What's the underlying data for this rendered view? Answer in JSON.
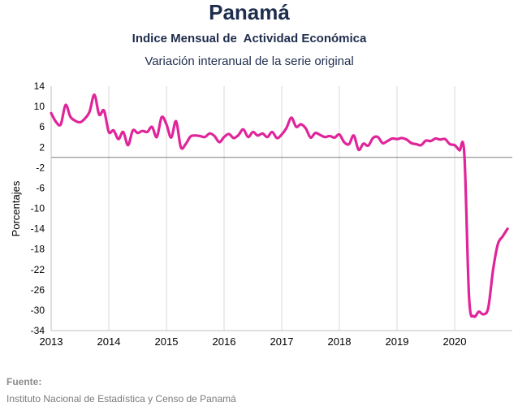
{
  "header": {
    "title": "Panamá",
    "subtitle": "Indice Mensual de  Actividad Económica",
    "subtitle2": "Variación interanual de la serie original"
  },
  "source": {
    "label": "Fuente:",
    "text": "Instituto Nacional de Estadística y Censo de Panamá"
  },
  "chart_data": {
    "type": "line",
    "title": "Panamá",
    "subtitle": "Indice Mensual de  Actividad Económica - Variación interanual de la serie original",
    "xlabel": "",
    "ylabel": "Porcentajes",
    "xlim": [
      2013,
      2021
    ],
    "ylim": [
      -34,
      14
    ],
    "yticks": [
      14,
      10,
      6,
      2,
      -2,
      -6,
      -10,
      -14,
      -18,
      -22,
      -26,
      -30,
      -34
    ],
    "xticks": [
      2013,
      2014,
      2015,
      2016,
      2017,
      2018,
      2019,
      2020
    ],
    "grid": "vertical",
    "zero_line": true,
    "line_color": "#e0249a",
    "series": [
      {
        "x": [
          2013.0,
          2013.083,
          2013.167,
          2013.25,
          2013.333,
          2013.417,
          2013.5,
          2013.583,
          2013.667,
          2013.75,
          2013.833,
          2013.917,
          2014.0,
          2014.083,
          2014.167,
          2014.25,
          2014.333,
          2014.417,
          2014.5,
          2014.583,
          2014.667,
          2014.75,
          2014.833,
          2014.917,
          2015.0,
          2015.083,
          2015.167,
          2015.25,
          2015.333,
          2015.417,
          2015.5,
          2015.583,
          2015.667,
          2015.75,
          2015.833,
          2015.917,
          2016.0,
          2016.083,
          2016.167,
          2016.25,
          2016.333,
          2016.417,
          2016.5,
          2016.583,
          2016.667,
          2016.75,
          2016.833,
          2016.917,
          2017.0,
          2017.083,
          2017.167,
          2017.25,
          2017.333,
          2017.417,
          2017.5,
          2017.583,
          2017.667,
          2017.75,
          2017.833,
          2017.917,
          2018.0,
          2018.083,
          2018.167,
          2018.25,
          2018.333,
          2018.417,
          2018.5,
          2018.583,
          2018.667,
          2018.75,
          2018.833,
          2018.917,
          2019.0,
          2019.083,
          2019.167,
          2019.25,
          2019.333,
          2019.417,
          2019.5,
          2019.583,
          2019.667,
          2019.75,
          2019.833,
          2019.917,
          2020.0,
          2020.083,
          2020.167,
          2020.25,
          2020.333,
          2020.417,
          2020.5,
          2020.583,
          2020.667,
          2020.75,
          2020.833,
          2020.917
        ],
        "values": [
          8.7,
          7.0,
          6.5,
          10.3,
          8.0,
          7.2,
          6.9,
          7.6,
          9.0,
          12.3,
          8.4,
          9.2,
          5.0,
          5.3,
          3.6,
          5.0,
          2.4,
          5.3,
          4.8,
          5.2,
          5.0,
          6.0,
          4.0,
          7.9,
          6.5,
          3.9,
          7.1,
          2.0,
          2.6,
          4.1,
          4.3,
          4.2,
          4.0,
          4.7,
          4.2,
          3.0,
          4.0,
          4.6,
          3.8,
          4.4,
          5.5,
          4.0,
          5.0,
          4.3,
          4.7,
          4.0,
          5.0,
          3.8,
          4.5,
          5.8,
          7.8,
          6.0,
          6.5,
          5.7,
          3.9,
          4.8,
          4.4,
          4.0,
          4.2,
          3.9,
          4.5,
          3.0,
          2.6,
          4.3,
          1.5,
          2.7,
          2.3,
          3.8,
          4.0,
          2.8,
          3.2,
          3.7,
          3.6,
          3.8,
          3.5,
          2.8,
          2.6,
          2.4,
          3.3,
          3.2,
          3.7,
          3.5,
          3.6,
          2.6,
          2.4,
          1.4,
          0.8,
          -27.5,
          -31.2,
          -30.3,
          -30.8,
          -29.5,
          -22.0,
          -17.0,
          -15.5,
          -14.0
        ]
      }
    ]
  }
}
